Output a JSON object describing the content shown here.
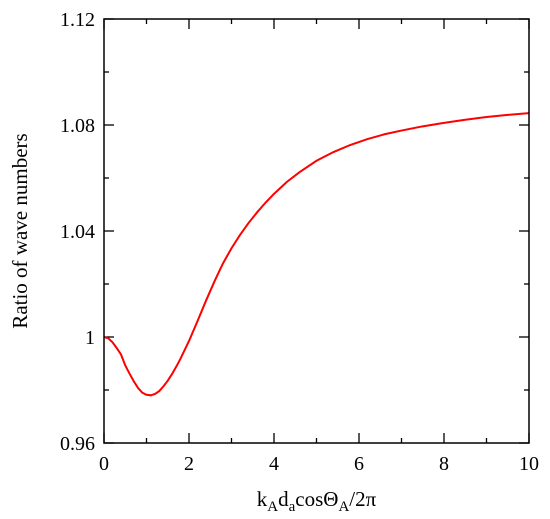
{
  "chart_data": {
    "type": "line",
    "title": "",
    "xlabel": {
      "k": "k",
      "sub1": "A",
      "d": "d",
      "sub2": "a",
      "cos": "cos",
      "theta": "Θ",
      "sub3": "A",
      "tail": "/2π"
    },
    "ylabel": "Ratio of wave numbers",
    "xlim": [
      0,
      10
    ],
    "ylim": [
      0.96,
      1.12
    ],
    "x_ticks": [
      {
        "value": 0,
        "label": "0"
      },
      {
        "value": 2,
        "label": "2"
      },
      {
        "value": 4,
        "label": "4"
      },
      {
        "value": 6,
        "label": "6"
      },
      {
        "value": 8,
        "label": "8"
      },
      {
        "value": 10,
        "label": "10"
      }
    ],
    "y_ticks": [
      {
        "value": 0.96,
        "label": "0.96"
      },
      {
        "value": 1.0,
        "label": "1"
      },
      {
        "value": 1.04,
        "label": "1.04"
      },
      {
        "value": 1.08,
        "label": "1.08"
      },
      {
        "value": 1.12,
        "label": "1.12"
      }
    ],
    "x_minor_ticks": [
      1,
      3,
      5,
      7,
      9
    ],
    "y_minor_ticks": [
      0.98,
      1.02,
      1.06,
      1.1
    ],
    "grid": false,
    "legend": "none",
    "series": [
      {
        "color": "#ff0000",
        "x": [
          0,
          0.1,
          0.2,
          0.3,
          0.4,
          0.5,
          0.6,
          0.7,
          0.8,
          0.9,
          1.0,
          1.1,
          1.2,
          1.3,
          1.4,
          1.5,
          1.6,
          1.7,
          1.8,
          2.0,
          2.2,
          2.4,
          2.6,
          2.8,
          3.0,
          3.2,
          3.4,
          3.6,
          3.8,
          4.0,
          4.3,
          4.6,
          5.0,
          5.4,
          5.8,
          6.2,
          6.6,
          7.0,
          7.5,
          8.0,
          8.5,
          9.0,
          9.5,
          10.0
        ],
        "y": [
          1.0,
          0.9995,
          0.998,
          0.9958,
          0.9934,
          0.9893,
          0.9862,
          0.9833,
          0.9808,
          0.979,
          0.9782,
          0.978,
          0.9785,
          0.9796,
          0.9814,
          0.9835,
          0.986,
          0.9888,
          0.9918,
          0.9985,
          1.006,
          1.0137,
          1.021,
          1.0278,
          1.0335,
          1.0385,
          1.043,
          1.047,
          1.0507,
          1.054,
          1.0585,
          1.0622,
          1.0665,
          1.0698,
          1.0725,
          1.0747,
          1.0765,
          1.0779,
          1.0795,
          1.0808,
          1.082,
          1.083,
          1.0838,
          1.0845
        ]
      }
    ]
  }
}
